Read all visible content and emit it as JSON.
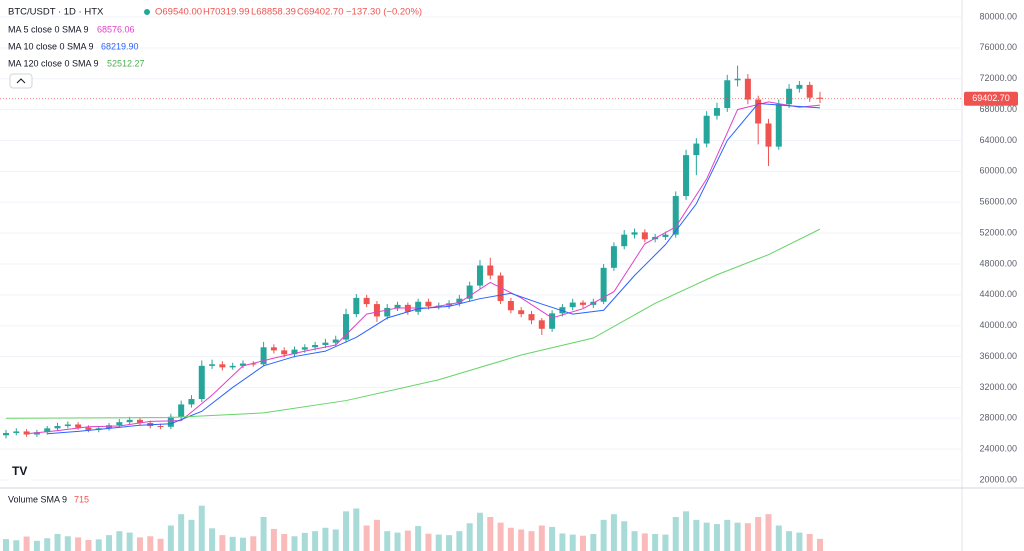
{
  "chart_data": {
    "type": "candlestick",
    "title": "BTC/USDT · 1D · HTX",
    "ohlc_labels": [
      "O69540.00",
      "H70319.99",
      "L68858.39",
      "C69402.70",
      "−137.30 (−0.20%)"
    ],
    "last_price_label": "69402.70",
    "up_color": "#26a69a",
    "down_color": "#ef5350",
    "ylim": [
      19100,
      82200
    ],
    "yticks": [
      {
        "value": 20000,
        "label": "20000.00"
      },
      {
        "value": 24000,
        "label": "24000.00"
      },
      {
        "value": 28000,
        "label": "28000.00"
      },
      {
        "value": 32000,
        "label": "32000.00"
      },
      {
        "value": 36000,
        "label": "36000.00"
      },
      {
        "value": 40000,
        "label": "40000.00"
      },
      {
        "value": 44000,
        "label": "44000.00"
      },
      {
        "value": 48000,
        "label": "48000.00"
      },
      {
        "value": 52000,
        "label": "52000.00"
      },
      {
        "value": 56000,
        "label": "56000.00"
      },
      {
        "value": 60000,
        "label": "60000.00"
      },
      {
        "value": 64000,
        "label": "64000.00"
      },
      {
        "value": 68000,
        "label": "68000.00"
      },
      {
        "value": 72000,
        "label": "72000.00"
      },
      {
        "value": 76000,
        "label": "76000.00"
      },
      {
        "value": 80000,
        "label": "80000.00"
      }
    ],
    "grid": true,
    "open": [
      25800,
      26100,
      26300,
      25900,
      26200,
      26700,
      27000,
      27200,
      26800,
      26500,
      26700,
      27100,
      27500,
      27800,
      27400,
      27000,
      26900,
      28200,
      29800,
      30500,
      34800,
      35000,
      34600,
      34800,
      35100,
      35000,
      37200,
      36800,
      36300,
      36900,
      37200,
      37500,
      37800,
      38200,
      41500,
      43600,
      42800,
      41200,
      42300,
      42700,
      41800,
      43100,
      42500,
      42600,
      42900,
      43500,
      45200,
      47800,
      46500,
      43200,
      42000,
      41500,
      40700,
      39600,
      41600,
      42400,
      43000,
      42700,
      43100,
      47500,
      50300,
      51800,
      52100,
      51200,
      51500,
      51800,
      56800,
      62100,
      63600,
      67200,
      68200,
      71800,
      72000,
      69300,
      66200,
      63200,
      68700,
      70700,
      71200,
      69540
    ],
    "high": [
      26500,
      26700,
      26600,
      26500,
      27000,
      27400,
      27600,
      27500,
      27100,
      27000,
      27400,
      27900,
      28200,
      28100,
      27700,
      27300,
      28600,
      30300,
      31000,
      35500,
      35600,
      35400,
      35200,
      35500,
      35400,
      37900,
      37600,
      37200,
      37300,
      37600,
      37900,
      38300,
      38700,
      42200,
      44100,
      44000,
      43200,
      42800,
      43100,
      43000,
      43500,
      43500,
      43000,
      43300,
      44000,
      45700,
      48500,
      48800,
      46900,
      43600,
      42400,
      41900,
      41000,
      42000,
      42800,
      43500,
      43300,
      43500,
      48000,
      50800,
      52400,
      52600,
      52500,
      51900,
      52200,
      57400,
      62800,
      64300,
      67800,
      68900,
      72500,
      73700,
      72600,
      69800,
      66800,
      69300,
      71300,
      71700,
      71600,
      70319.99
    ],
    "low": [
      25400,
      25800,
      25600,
      25600,
      25900,
      26400,
      26700,
      26500,
      26200,
      26200,
      26400,
      26800,
      27200,
      27100,
      26700,
      26600,
      26600,
      27900,
      29400,
      30100,
      34400,
      34200,
      34300,
      34500,
      34700,
      34800,
      36400,
      35900,
      35900,
      36500,
      36800,
      37100,
      37400,
      37800,
      41100,
      42400,
      40500,
      40800,
      41900,
      41400,
      41400,
      42100,
      42100,
      42200,
      42500,
      43100,
      44800,
      46000,
      42800,
      41600,
      41100,
      40200,
      38800,
      39200,
      41200,
      42000,
      42300,
      42300,
      42800,
      47100,
      49900,
      51300,
      50800,
      50800,
      51100,
      51400,
      56300,
      59500,
      63100,
      66700,
      67700,
      71000,
      68700,
      63500,
      60700,
      62800,
      68200,
      70200,
      69000,
      68858.39
    ],
    "close": [
      26100,
      26300,
      25900,
      26200,
      26700,
      27000,
      27200,
      26800,
      26500,
      26700,
      27100,
      27500,
      27800,
      27400,
      27000,
      26900,
      28200,
      29800,
      30500,
      34800,
      35000,
      34600,
      34800,
      35100,
      35000,
      37200,
      36800,
      36300,
      36900,
      37200,
      37500,
      37800,
      38200,
      41500,
      43600,
      42800,
      41200,
      42300,
      42700,
      41800,
      43100,
      42500,
      42600,
      42900,
      43500,
      45200,
      47800,
      46500,
      43200,
      42000,
      41500,
      40700,
      39600,
      41600,
      42400,
      43000,
      42700,
      43100,
      47500,
      50300,
      51800,
      52100,
      51200,
      51500,
      51800,
      56800,
      62100,
      63600,
      67200,
      68200,
      71800,
      72000,
      69300,
      66200,
      63200,
      68700,
      70700,
      71200,
      69540,
      69402.7
    ],
    "series": [
      {
        "name": "MA 5 close 0 SMA 9",
        "value_label": "68576.06",
        "color": "#e040c8",
        "x": [
          2,
          5,
          8,
          11,
          14,
          17,
          20,
          23,
          26,
          29,
          32,
          35,
          38,
          41,
          44,
          47,
          50,
          53,
          56,
          59,
          62,
          65,
          68,
          71,
          74,
          77,
          79
        ],
        "values": [
          26000,
          26400,
          26900,
          27000,
          27600,
          27700,
          31000,
          34800,
          35800,
          36700,
          37500,
          41500,
          42300,
          42300,
          43000,
          45600,
          43600,
          41000,
          42200,
          44400,
          50600,
          52800,
          59000,
          68000,
          69000,
          68300,
          68576.06
        ]
      },
      {
        "name": "MA 10 close 0 SMA 9",
        "value_label": "68219.90",
        "color": "#2962ff",
        "x": [
          4,
          7,
          10,
          13,
          16,
          19,
          22,
          25,
          28,
          31,
          34,
          37,
          40,
          43,
          46,
          49,
          52,
          55,
          58,
          61,
          64,
          67,
          70,
          73,
          76,
          79
        ],
        "values": [
          26000,
          26300,
          26700,
          27100,
          27300,
          28900,
          32000,
          34800,
          36000,
          36700,
          38500,
          41000,
          42200,
          42500,
          43500,
          44200,
          42800,
          41500,
          42000,
          46500,
          50500,
          55800,
          64000,
          68800,
          68500,
          68219.9
        ]
      },
      {
        "name": "MA 120 close 0 SMA 9",
        "value_label": "52512.27",
        "color": "#66d466",
        "x": [
          0,
          16,
          25,
          33,
          42,
          50,
          57,
          63,
          69,
          74,
          79
        ],
        "values": [
          28000,
          28100,
          28700,
          30300,
          33000,
          36200,
          38400,
          42900,
          46600,
          49200,
          52512.27
        ]
      }
    ],
    "volume": {
      "name": "Volume SMA 9",
      "value_label": "715",
      "ylim": [
        0,
        1800
      ],
      "values": [
        420,
        380,
        510,
        360,
        450,
        600,
        520,
        480,
        390,
        410,
        560,
        700,
        650,
        480,
        520,
        430,
        900,
        1300,
        1100,
        1600,
        800,
        560,
        500,
        470,
        520,
        1200,
        780,
        600,
        520,
        640,
        700,
        820,
        760,
        1400,
        1500,
        900,
        1100,
        700,
        650,
        720,
        880,
        610,
        580,
        560,
        700,
        980,
        1350,
        1200,
        1000,
        820,
        760,
        700,
        900,
        850,
        620,
        580,
        540,
        600,
        1100,
        1300,
        1050,
        700,
        620,
        600,
        580,
        1200,
        1400,
        1100,
        1000,
        950,
        1100,
        1000,
        980,
        1200,
        1300,
        900,
        700,
        650,
        600,
        430
      ]
    }
  }
}
